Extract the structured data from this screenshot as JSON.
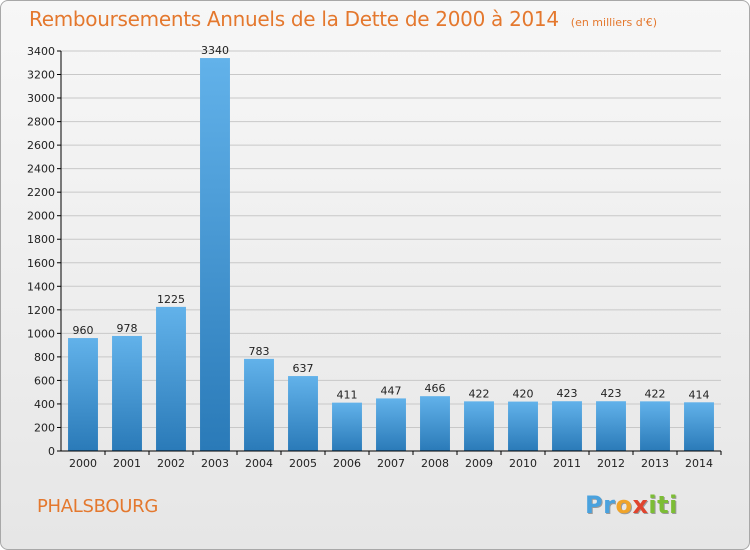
{
  "header": {
    "title": "Remboursements Annuels de la Dette de 2000 à 2014",
    "unit": "(en milliers d'€)"
  },
  "footer": {
    "place": "PHALSBOURG",
    "logo": "Proxiti"
  },
  "chart_data": {
    "type": "bar",
    "title": "Remboursements Annuels de la Dette de 2000 à 2014",
    "subtitle": "(en milliers d'€)",
    "xlabel": "",
    "ylabel": "",
    "categories": [
      "2000",
      "2001",
      "2002",
      "2003",
      "2004",
      "2005",
      "2006",
      "2007",
      "2008",
      "2009",
      "2010",
      "2011",
      "2012",
      "2013",
      "2014"
    ],
    "values": [
      960,
      978,
      1225,
      3340,
      783,
      637,
      411,
      447,
      466,
      422,
      420,
      423,
      423,
      422,
      414
    ],
    "ylim": [
      0,
      3400
    ],
    "yticks": [
      0,
      200,
      400,
      600,
      800,
      1000,
      1200,
      1400,
      1600,
      1800,
      2000,
      2200,
      2400,
      2600,
      2800,
      3000,
      3200,
      3400
    ],
    "grid": true,
    "legend": "none",
    "colors": {
      "bar_light": "#62b2ea",
      "bar_dark": "#2a7ab8",
      "grid": "#c8c8c8",
      "axis": "#000000"
    }
  }
}
